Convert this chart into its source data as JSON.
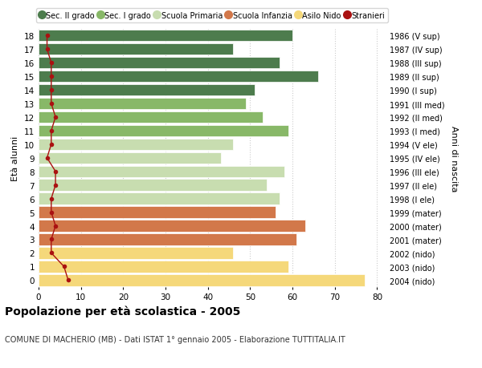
{
  "ages": [
    18,
    17,
    16,
    15,
    14,
    13,
    12,
    11,
    10,
    9,
    8,
    7,
    6,
    5,
    4,
    3,
    2,
    1,
    0
  ],
  "years": [
    "1986 (V sup)",
    "1987 (IV sup)",
    "1988 (III sup)",
    "1989 (II sup)",
    "1990 (I sup)",
    "1991 (III med)",
    "1992 (II med)",
    "1993 (I med)",
    "1994 (V ele)",
    "1995 (IV ele)",
    "1996 (III ele)",
    "1997 (II ele)",
    "1998 (I ele)",
    "1999 (mater)",
    "2000 (mater)",
    "2001 (mater)",
    "2002 (nido)",
    "2003 (nido)",
    "2004 (nido)"
  ],
  "bar_values": [
    60,
    46,
    57,
    66,
    51,
    49,
    53,
    59,
    46,
    43,
    58,
    54,
    57,
    56,
    63,
    61,
    46,
    59,
    77
  ],
  "bar_colors": [
    "#4d7c4d",
    "#4d7c4d",
    "#4d7c4d",
    "#4d7c4d",
    "#4d7c4d",
    "#88b868",
    "#88b868",
    "#88b868",
    "#c8ddb0",
    "#c8ddb0",
    "#c8ddb0",
    "#c8ddb0",
    "#c8ddb0",
    "#d2784a",
    "#d2784a",
    "#d2784a",
    "#f5d87a",
    "#f5d87a",
    "#f5d87a"
  ],
  "stranieri_values": [
    2,
    2,
    3,
    3,
    3,
    3,
    4,
    3,
    3,
    2,
    4,
    4,
    3,
    3,
    4,
    3,
    3,
    6,
    7
  ],
  "legend_labels": [
    "Sec. II grado",
    "Sec. I grado",
    "Scuola Primaria",
    "Scuola Infanzia",
    "Asilo Nido",
    "Stranieri"
  ],
  "legend_colors": [
    "#4d7c4d",
    "#88b868",
    "#c8ddb0",
    "#d2784a",
    "#f5d87a",
    "#aa1111"
  ],
  "ylabel_left": "Età alunni",
  "ylabel_right": "Anni di nascita",
  "title": "Popolazione per età scolastica - 2005",
  "subtitle": "COMUNE DI MACHERIO (MB) - Dati ISTAT 1° gennaio 2005 - Elaborazione TUTTITALIA.IT",
  "xlim": [
    0,
    82
  ],
  "background_color": "#ffffff",
  "bar_edgecolor": "#ffffff",
  "grid_color": "#cccccc",
  "stranieri_color": "#aa1111"
}
